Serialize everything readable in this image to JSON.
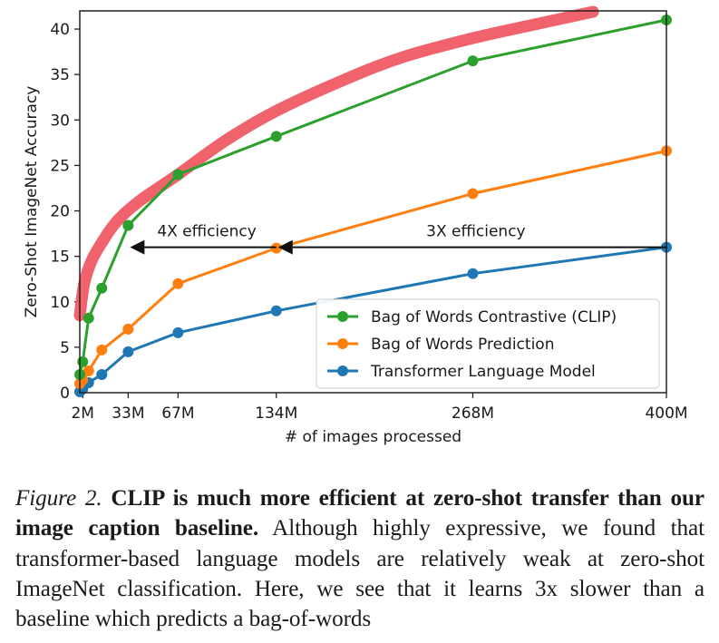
{
  "chart_data": {
    "type": "line",
    "title": "",
    "xlabel": "# of images processed",
    "ylabel": "Zero-Shot ImageNet Accuracy",
    "xlim": [
      0,
      400
    ],
    "ylim": [
      0,
      42
    ],
    "x_ticks": [
      {
        "value": 2,
        "label": "2M"
      },
      {
        "value": 33,
        "label": "33M"
      },
      {
        "value": 67,
        "label": "67M"
      },
      {
        "value": 134,
        "label": "134M"
      },
      {
        "value": 268,
        "label": "268M"
      },
      {
        "value": 400,
        "label": "400M"
      }
    ],
    "y_ticks": [
      0,
      5,
      10,
      15,
      20,
      25,
      30,
      35,
      40
    ],
    "legend_position": "lower-right",
    "series": [
      {
        "name": "Bag of Words Contrastive (CLIP)",
        "color": "#2ca02c",
        "x": [
          0,
          2,
          6,
          15,
          33,
          67,
          134,
          268,
          400
        ],
        "y": [
          2,
          3.4,
          8.2,
          11.5,
          18.4,
          24,
          28.2,
          36.5,
          41
        ]
      },
      {
        "name": "Bag of Words Prediction",
        "color": "#ff7f0e",
        "x": [
          0,
          2,
          6,
          15,
          33,
          67,
          134,
          268,
          400
        ],
        "y": [
          1,
          1.4,
          2.4,
          4.7,
          7,
          12,
          15.9,
          21.9,
          26.6
        ]
      },
      {
        "name": "Transformer Language Model",
        "color": "#1f77b4",
        "x": [
          0,
          2,
          6,
          15,
          33,
          67,
          134,
          268,
          400
        ],
        "y": [
          0.1,
          0.4,
          1.1,
          2,
          4.5,
          6.6,
          9,
          13.1,
          16
        ]
      }
    ],
    "highlight_curve": {
      "color": "#ef5560",
      "x": [
        0,
        3,
        8,
        15,
        25,
        40,
        67,
        100,
        134,
        180,
        220,
        268,
        310,
        350
      ],
      "y": [
        8.5,
        12,
        14.5,
        16.5,
        18.8,
        21,
        24,
        27.8,
        31,
        34.4,
        36.9,
        39,
        40.5,
        41.9
      ]
    },
    "annotations": [
      {
        "text": "4X efficiency",
        "arrow_from": 134,
        "arrow_to": 33,
        "y": 16
      },
      {
        "text": "3X efficiency",
        "arrow_from": 400,
        "arrow_to": 134,
        "y": 16
      }
    ]
  },
  "caption": {
    "figure_label": "Figure 2.",
    "bold_text": "CLIP is much more efficient at zero-shot transfer than our image caption baseline.",
    "body_text": "Although highly expressive, we found that transformer-based language models are relatively weak at zero-shot ImageNet classification. Here, we see that it learns 3x slower than a baseline which predicts a bag-of-words"
  }
}
